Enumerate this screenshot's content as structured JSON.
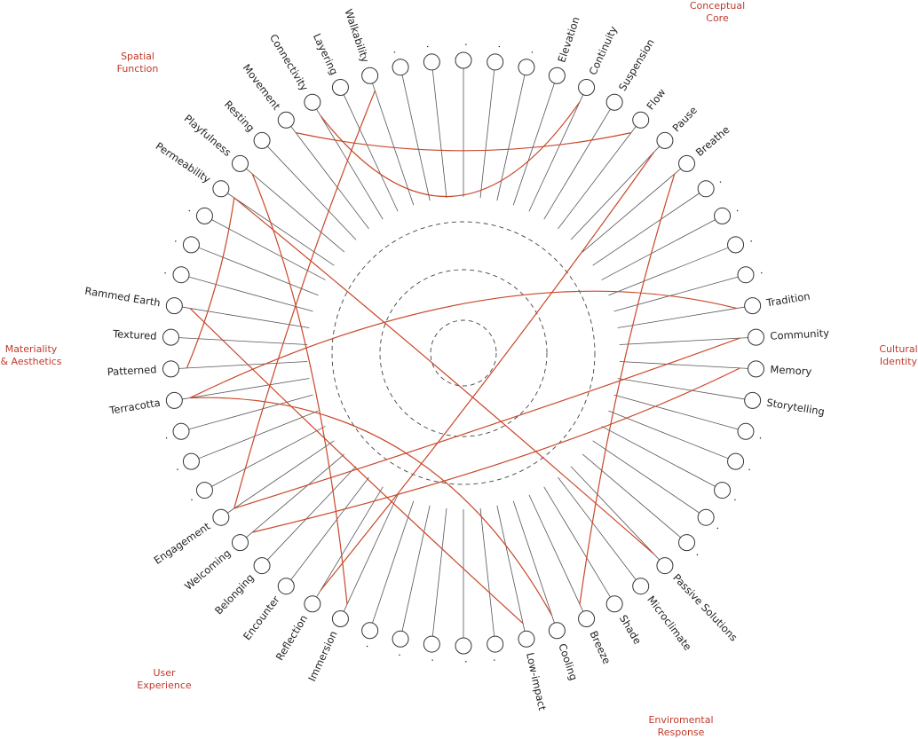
{
  "nodes": [
    {
      "label": "."
    },
    {
      "label": "."
    },
    {
      "label": "."
    },
    {
      "label": "Elevation"
    },
    {
      "label": "Continuity"
    },
    {
      "label": "Suspension"
    },
    {
      "label": "Flow"
    },
    {
      "label": "Pause"
    },
    {
      "label": "Breathe"
    },
    {
      "label": "."
    },
    {
      "label": "."
    },
    {
      "label": "."
    },
    {
      "label": "."
    },
    {
      "label": "Tradition"
    },
    {
      "label": "Community"
    },
    {
      "label": "Memory"
    },
    {
      "label": "Storytelling"
    },
    {
      "label": "."
    },
    {
      "label": "."
    },
    {
      "label": "."
    },
    {
      "label": "."
    },
    {
      "label": "."
    },
    {
      "label": "Passive Solutions"
    },
    {
      "label": "Microclimate"
    },
    {
      "label": "Shade"
    },
    {
      "label": "Breeze"
    },
    {
      "label": "Cooling"
    },
    {
      "label": "Low-impact"
    },
    {
      "label": "."
    },
    {
      "label": "."
    },
    {
      "label": "."
    },
    {
      "label": "."
    },
    {
      "label": "."
    },
    {
      "label": "Immersion"
    },
    {
      "label": "Reflection"
    },
    {
      "label": "Encounter"
    },
    {
      "label": "Belonging"
    },
    {
      "label": "Welcoming"
    },
    {
      "label": "Engagement"
    },
    {
      "label": "."
    },
    {
      "label": "."
    },
    {
      "label": "."
    },
    {
      "label": "Terracotta"
    },
    {
      "label": "Patterned"
    },
    {
      "label": "Textured"
    },
    {
      "label": "Rammed Earth"
    },
    {
      "label": "."
    },
    {
      "label": "."
    },
    {
      "label": "."
    },
    {
      "label": "Permeability"
    },
    {
      "label": "Playfulness"
    },
    {
      "label": "Resting"
    },
    {
      "label": "Movement"
    },
    {
      "label": "Connectivity"
    },
    {
      "label": "Layering"
    },
    {
      "label": "Walkability"
    },
    {
      "label": "."
    },
    {
      "label": "."
    }
  ],
  "groups": [
    {
      "lines": [
        "Conceptual",
        "Core"
      ]
    },
    {
      "lines": [
        "Cultural",
        "Identity"
      ]
    },
    {
      "lines": [
        "Enviromental",
        "Response"
      ]
    },
    {
      "lines": [
        "User",
        "Experience"
      ]
    },
    {
      "lines": [
        "Materiality",
        "& Aesthetics"
      ]
    },
    {
      "lines": [
        "Spatial",
        "Function"
      ]
    }
  ]
}
